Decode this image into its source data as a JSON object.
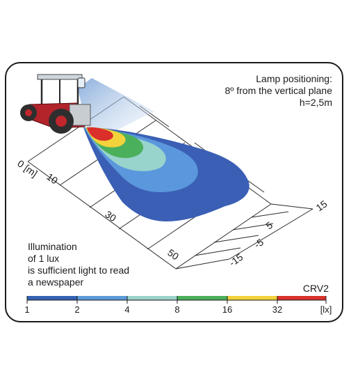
{
  "lamp_info": {
    "line1": "Lamp positioning:",
    "line2": "8º from the vertical plane",
    "line3": "h=2,5m"
  },
  "note": {
    "line1": "Illumination",
    "line2": "of 1 lux",
    "line3": "is sufficient light to read",
    "line4": "a newspaper"
  },
  "product_code": "CRV2",
  "distance_axis": {
    "unit_label": "0 [m]",
    "ticks": [
      "10",
      "30",
      "50"
    ]
  },
  "lateral_axis": {
    "ticks": [
      "15",
      "5",
      "-5",
      "-15"
    ]
  },
  "legend": {
    "unit": "[lx]",
    "ticks": [
      "1",
      "2",
      "4",
      "8",
      "16",
      "32"
    ],
    "colors": [
      "#3563b3",
      "#5b9ad9",
      "#9bd3c9",
      "#4caf5b",
      "#f2d13a",
      "#d9312b"
    ]
  },
  "contours": {
    "levels_lx": [
      1,
      2,
      4,
      8,
      16,
      32
    ],
    "colors": [
      "#3a5fb5",
      "#5b97dc",
      "#99d4cc",
      "#4bb05c",
      "#f2d33c",
      "#db2f2b"
    ]
  }
}
